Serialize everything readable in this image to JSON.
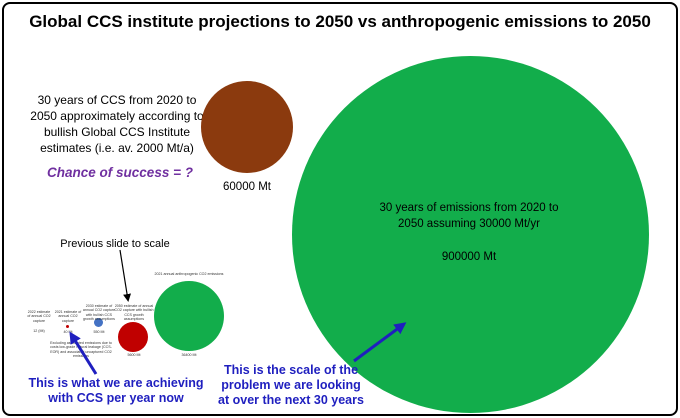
{
  "title": "Global CCS institute projections to 2050 vs anthropogenic emissions to 2050",
  "ccs_projection": {
    "description": "30 years of CCS from 2020 to 2050 approximately according to bullish Global CCS Institute estimates (i.e. av. 2000 Mt/a)",
    "value_label": "60000 Mt",
    "color": "#8b3a0e"
  },
  "chance_text": "Chance of success = ?",
  "emissions": {
    "description": "30 years of emissions from 2020 to 2050 assuming 30000 Mt/yr",
    "value_label": "900000 Mt",
    "color": "#12ad4b"
  },
  "previous_slide": {
    "label": "Previous slide to scale",
    "labels": {
      "green_caption": "2021 annual anthropogenic CO2 emissions",
      "green_value": "36400 Mt",
      "red_caption": "2050 estimate of annual CO2 capture with bullish CCS growth assumptions",
      "red_value": "5600 Mt",
      "blue_caption": "2030 estimate of annual CO2 capture with bullish CCS growth assumptions",
      "blue_value": "550 Mt",
      "dot_caption": "2021 estimate of annual CO2 capture",
      "dot_value": "40 Mt",
      "left_caption": "2022 estimate of annual CO2 capture",
      "left_value": "12 (Mt)",
      "bottom_caption": "Excluding associated emissions due to costs low-grade natural leakage (CCS-EOR) and associated uncaptured CO2 emissions"
    }
  },
  "notes": {
    "left": "This is what we are achieving with CCS per year now",
    "right": "This is the scale of the problem we are looking at over the next 30 years"
  },
  "colors": {
    "note_text": "#1f1fbf",
    "chance_text": "#7030a0",
    "mini_red": "#c00000",
    "mini_blue": "#4472c4"
  }
}
